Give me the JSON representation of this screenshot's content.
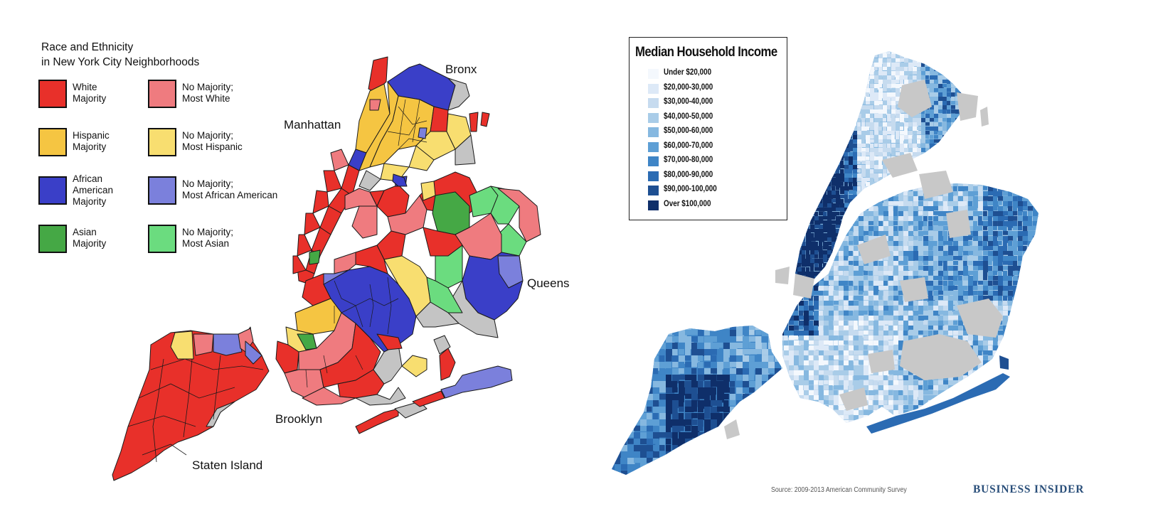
{
  "race_map": {
    "title_line1": "Race and Ethnicity",
    "title_line2": "in New York City Neighborhoods",
    "legend": [
      {
        "lines": [
          "White",
          "Majority"
        ],
        "color": "#e8302a"
      },
      {
        "lines": [
          "No Majority;",
          "Most White"
        ],
        "color": "#ef7b7f"
      },
      {
        "lines": [
          "Hispanic",
          "Majority"
        ],
        "color": "#f5c542"
      },
      {
        "lines": [
          "No Majority;",
          "Most Hispanic"
        ],
        "color": "#f8de70"
      },
      {
        "lines": [
          "African",
          "American",
          "Majority"
        ],
        "color": "#3a3fc8"
      },
      {
        "lines": [
          "No Majority;",
          "Most African American"
        ],
        "color": "#7b80dc"
      },
      {
        "lines": [
          "Asian",
          "Majority"
        ],
        "color": "#45a845"
      },
      {
        "lines": [
          "No Majority;",
          "Most Asian"
        ],
        "color": "#6bdc7f"
      }
    ],
    "boroughs": {
      "bronx": "Bronx",
      "manhattan": "Manhattan",
      "queens": "Queens",
      "brooklyn": "Brooklyn",
      "staten_island": "Staten Island"
    },
    "no_data_color": "#c4c4c4"
  },
  "income_map": {
    "title": "Median Household Income",
    "legend": [
      {
        "label": "Under $20,000",
        "color": "#f4f8fd"
      },
      {
        "label": "$20,000-30,000",
        "color": "#dde9f7"
      },
      {
        "label": "$30,000-40,000",
        "color": "#c6dbef"
      },
      {
        "label": "$40,000-50,000",
        "color": "#a9cce8"
      },
      {
        "label": "$50,000-60,000",
        "color": "#86b8e0"
      },
      {
        "label": "$60,000-70,000",
        "color": "#5e9fd5"
      },
      {
        "label": "$70,000-80,000",
        "color": "#3f85c6"
      },
      {
        "label": "$80,000-90,000",
        "color": "#2b6bb3"
      },
      {
        "label": "$90,000-100,000",
        "color": "#1e4f92"
      },
      {
        "label": "Over $100,000",
        "color": "#0f2f6a"
      }
    ],
    "source": "Source: 2009-2013 American Community Survey"
  },
  "branding": {
    "name": "Business Insider"
  }
}
